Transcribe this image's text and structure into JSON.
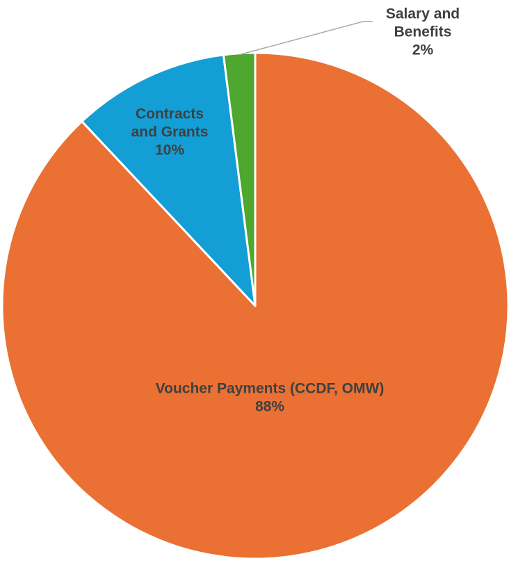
{
  "chart_data": {
    "type": "pie",
    "title": "",
    "start_angle_deg": 0,
    "direction": "clockwise",
    "slice_border_color": "#ffffff",
    "label_color": "#404040",
    "leader_line_color": "#a6a6a6",
    "slices": [
      {
        "label_lines": [
          "Voucher Payments (CCDF, OMW)"
        ],
        "percent_label": "88%",
        "value": 88,
        "color": "#ea7133"
      },
      {
        "label_lines": [
          "Contracts",
          "and Grants"
        ],
        "percent_label": "10%",
        "value": 10,
        "color": "#139ed5"
      },
      {
        "label_lines": [
          "Salary and",
          "Benefits"
        ],
        "percent_label": "2%",
        "value": 2,
        "color": "#4ea72e"
      }
    ]
  }
}
